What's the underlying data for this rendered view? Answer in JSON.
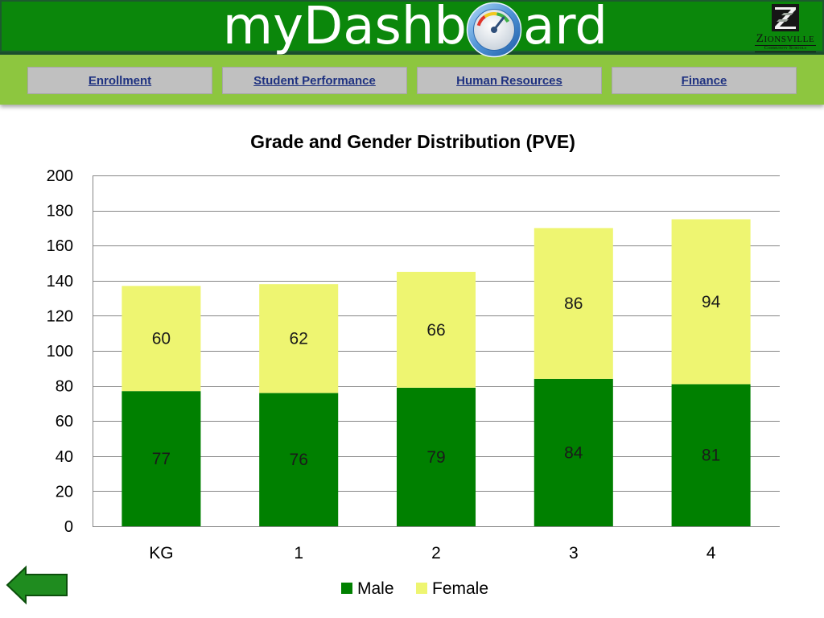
{
  "header": {
    "title_left": "myDashb",
    "title_right": "ard",
    "logo_name": "Zionsville",
    "logo_subtitle": "Community Schools"
  },
  "nav": {
    "items": [
      {
        "label": "Enrollment"
      },
      {
        "label": "Student Performance"
      },
      {
        "label": "Human Resources"
      },
      {
        "label": "Finance"
      }
    ]
  },
  "icons": {
    "title_gauge": "gauge-icon",
    "logo": "shield-emblem-icon",
    "back": "back-arrow-icon"
  },
  "theme": {
    "header_bg": "#0b870b",
    "nav_bg": "#8dc63f",
    "button_bg": "#c0c0c0",
    "link_color": "#1f3280",
    "back_arrow": "#1f8c1f"
  },
  "chart_data": {
    "type": "bar",
    "stacked": true,
    "title": "Grade and Gender Distribution (PVE)",
    "categories": [
      "KG",
      "1",
      "2",
      "3",
      "4"
    ],
    "series": [
      {
        "name": "Male",
        "values": [
          77,
          76,
          79,
          84,
          81
        ],
        "color": "#008000"
      },
      {
        "name": "Female",
        "values": [
          60,
          62,
          66,
          86,
          94
        ],
        "color": "#eef571"
      }
    ],
    "ylim": [
      0,
      200
    ],
    "yticks": [
      0,
      20,
      40,
      60,
      80,
      100,
      120,
      140,
      160,
      180,
      200
    ],
    "grid": true,
    "data_labels": true,
    "legend": "bottom"
  }
}
